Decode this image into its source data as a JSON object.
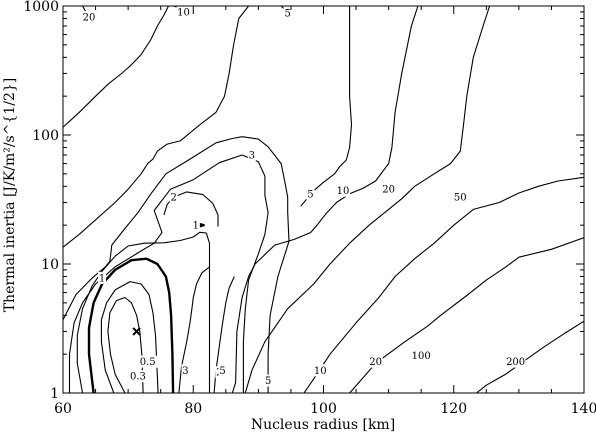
{
  "chart_data": {
    "type": "contour",
    "xlabel": "Nucleus radius [km]",
    "ylabel": "Thermal inertia [J/K/m²/s^{1/2}]",
    "xlim": [
      60,
      140
    ],
    "ylim": [
      1,
      1000
    ],
    "yscale": "log",
    "x_ticks": [
      60,
      80,
      100,
      120,
      140
    ],
    "y_ticks": [
      1,
      10,
      100,
      1000
    ],
    "y_tick_labels": [
      "1",
      "10",
      "100",
      "1000"
    ],
    "grid": false,
    "markers": [
      {
        "symbol": "x",
        "x": 71.3,
        "y": 3.0
      }
    ],
    "contours": [
      {
        "level": 0.3,
        "label": "0.3",
        "line_width": 1,
        "label_at": [
          71.5,
          1.35
        ],
        "points": [
          [
            69.5,
            1
          ],
          [
            68.0,
            1.4
          ],
          [
            67.3,
            2.0
          ],
          [
            66.9,
            3.0
          ],
          [
            67.2,
            4.2
          ],
          [
            68.2,
            5.2
          ],
          [
            69.5,
            5.5
          ],
          [
            70.5,
            5.0
          ],
          [
            71.3,
            4.0
          ],
          [
            71.8,
            3.0
          ],
          [
            72.1,
            2.0
          ],
          [
            72.3,
            1
          ]
        ]
      },
      {
        "level": 0.5,
        "label": "0.5",
        "line_width": 1,
        "label_at": [
          73.0,
          1.75
        ],
        "points": [
          [
            67.8,
            1
          ],
          [
            66.5,
            1.5
          ],
          [
            65.9,
            2.5
          ],
          [
            65.9,
            3.7
          ],
          [
            66.7,
            5.0
          ],
          [
            68.0,
            6.3
          ],
          [
            70.3,
            7.3
          ],
          [
            72.0,
            7.0
          ],
          [
            73.2,
            5.8
          ],
          [
            73.8,
            4.2
          ],
          [
            74.2,
            2.8
          ],
          [
            74.6,
            1
          ]
        ]
      },
      {
        "level": 1,
        "label": "1",
        "line_width": 2,
        "label_at": [
          66.0,
          7.8
        ],
        "points": [
          [
            64.7,
            1
          ],
          [
            64.0,
            2.0
          ],
          [
            64.0,
            3.2
          ],
          [
            64.7,
            5.0
          ],
          [
            66.0,
            7.0
          ],
          [
            68.0,
            9.0
          ],
          [
            70.5,
            10.7
          ],
          [
            72.8,
            11.0
          ],
          [
            74.5,
            10.0
          ],
          [
            75.8,
            8.0
          ],
          [
            76.3,
            6.0
          ],
          [
            76.6,
            4.0
          ],
          [
            76.8,
            2.0
          ],
          [
            76.9,
            1
          ]
        ]
      },
      {
        "level": 1,
        "label": "1",
        "line_width": 2,
        "label_at": [
          80.4,
          20
        ],
        "points": [
          [
            80.0,
            20
          ],
          [
            80.8,
            20.5
          ],
          [
            81.6,
            20
          ],
          [
            80.8,
            19.5
          ],
          [
            80.0,
            20
          ]
        ]
      },
      {
        "level": 2,
        "label": "2",
        "line_width": 1,
        "label_at": [
          84.0,
          1.45
        ],
        "points": [
          [
            63.0,
            1
          ],
          [
            62.2,
            1.7
          ],
          [
            62.2,
            2.8
          ],
          [
            63.0,
            4.5
          ],
          [
            64.5,
            6.8
          ],
          [
            66.0,
            8.8
          ],
          [
            68.0,
            11.5
          ],
          [
            70.0,
            13.8
          ],
          [
            72.5,
            14.5
          ],
          [
            75.5,
            14.6
          ],
          [
            78.0,
            15.2
          ],
          [
            80.0,
            16.2
          ],
          [
            81.0,
            17.6
          ],
          [
            82.0,
            17.4
          ],
          [
            82.5,
            14.5
          ],
          [
            82.5,
            10.0
          ],
          [
            82.5,
            5.0
          ],
          [
            82.5,
            2.5
          ],
          [
            82.5,
            1
          ]
        ]
      },
      {
        "level": 2,
        "label": "2",
        "line_width": 1,
        "label_at": [
          77.0,
          33
        ],
        "points": [
          [
            75.5,
            24
          ],
          [
            76.0,
            29
          ],
          [
            77.0,
            33
          ],
          [
            79.0,
            36.2
          ],
          [
            81.5,
            34.5
          ],
          [
            83.0,
            29.5
          ],
          [
            83.8,
            24.0
          ],
          [
            83.8,
            19.5
          ]
        ]
      },
      {
        "level": 3,
        "label": "3",
        "line_width": 1,
        "label_at": [
          89.0,
          70
        ],
        "points": [
          [
            61.0,
            1
          ],
          [
            61.0,
            2.0
          ],
          [
            61.7,
            3.5
          ],
          [
            63.0,
            5.0
          ],
          [
            65.0,
            7.0
          ],
          [
            68.0,
            9.5
          ],
          [
            71.5,
            12.2
          ],
          [
            74.0,
            14.5
          ],
          [
            75.2,
            17.5
          ],
          [
            74.0,
            26.0
          ],
          [
            76.5,
            38
          ],
          [
            80.0,
            45.0
          ],
          [
            84.0,
            61.0
          ],
          [
            87.5,
            70.0
          ],
          [
            90.0,
            62.0
          ],
          [
            91.0,
            48.0
          ],
          [
            91.0,
            34.0
          ],
          [
            91.5,
            25.0
          ],
          [
            91.0,
            17.0
          ],
          [
            90.0,
            12.0
          ],
          [
            88.5,
            7.5
          ],
          [
            88.0,
            4.5
          ],
          [
            87.7,
            2.5
          ],
          [
            87.7,
            1
          ]
        ]
      },
      {
        "level": 5,
        "label": "5",
        "line_width": 1,
        "label_at": [
          91.5,
          1.25
        ],
        "points": [
          [
            60.0,
            3.7
          ],
          [
            62.0,
            5.8
          ],
          [
            64.5,
            7.8
          ],
          [
            66.5,
            9.5
          ],
          [
            67.2,
            10.5
          ],
          [
            67.5,
            14.0
          ],
          [
            69.0,
            17.5
          ],
          [
            71.5,
            25.0
          ],
          [
            73.5,
            35.0
          ],
          [
            75.8,
            50.0
          ],
          [
            79.5,
            65.0
          ],
          [
            83.5,
            87.0
          ],
          [
            86.0,
            94.0
          ],
          [
            87.5,
            97.0
          ],
          [
            90.0,
            93.0
          ],
          [
            91.5,
            81.0
          ],
          [
            93.5,
            60.0
          ],
          [
            94.0,
            45.0
          ],
          [
            94.5,
            33.0
          ],
          [
            94.5,
            25.0
          ],
          [
            94.7,
            15.0
          ],
          [
            93.0,
            8.0
          ],
          [
            91.8,
            4.0
          ],
          [
            91.5,
            2.0
          ],
          [
            91.5,
            1
          ]
        ]
      },
      {
        "level": 5,
        "label": "5",
        "line_width": 1,
        "label_at": [
          98.0,
          35
        ],
        "points": [
          [
            96.5,
            28.0
          ],
          [
            98.5,
            37.0
          ],
          [
            100.0,
            43.0
          ],
          [
            101.7,
            50.0
          ],
          [
            102.5,
            57.0
          ],
          [
            103.5,
            64.0
          ],
          [
            104.0,
            80.0
          ],
          [
            104.3,
            120.0
          ],
          [
            104.0,
            200.0
          ],
          [
            104.0,
            400.0
          ],
          [
            104.0,
            1000
          ]
        ]
      },
      {
        "level": 10,
        "label": "10",
        "line_width": 1,
        "label_at": [
          99.5,
          1.5
        ],
        "points": [
          [
            60.0,
            13.5
          ],
          [
            62.5,
            17.0
          ],
          [
            65.0,
            22.0
          ],
          [
            68.0,
            30.0
          ],
          [
            70.0,
            38.0
          ],
          [
            72.0,
            50.0
          ],
          [
            73.0,
            60.0
          ],
          [
            73.8,
            65.0
          ],
          [
            74.5,
            75.0
          ],
          [
            76.0,
            85.0
          ],
          [
            78.0,
            90.0
          ],
          [
            81.0,
            120.0
          ],
          [
            83.5,
            150.0
          ],
          [
            84.8,
            200.0
          ],
          [
            85.5,
            300.0
          ],
          [
            86.2,
            500.0
          ],
          [
            87.0,
            800.0
          ],
          [
            88.5,
            1000
          ]
        ]
      },
      {
        "level": 10,
        "label": "10",
        "line_width": 1,
        "label_at": [
          103.0,
          37
        ],
        "points": [
          [
            86.0,
            1
          ],
          [
            86.5,
            1.2
          ],
          [
            86.6,
            1.8
          ],
          [
            86.7,
            3.0
          ],
          [
            87.5,
            5.5
          ],
          [
            88.5,
            8.0
          ],
          [
            89.5,
            10.0
          ],
          [
            92.5,
            14.0
          ],
          [
            95.5,
            15.5
          ],
          [
            98.0,
            17.5
          ],
          [
            99.0,
            20.0
          ],
          [
            100.5,
            25.0
          ],
          [
            102.0,
            30.0
          ],
          [
            104.0,
            35.0
          ],
          [
            106.0,
            38.5
          ],
          [
            108.0,
            44.0
          ],
          [
            110.0,
            60.0
          ],
          [
            110.5,
            80.0
          ],
          [
            111.0,
            150.0
          ],
          [
            112.0,
            300.0
          ],
          [
            113.5,
            700.0
          ],
          [
            114.5,
            1000
          ]
        ]
      },
      {
        "level": 20,
        "label": "20",
        "line_width": 1,
        "label_at": [
          108.0,
          1.75
        ],
        "points": [
          [
            60.0,
            115.0
          ],
          [
            62.5,
            150.0
          ],
          [
            65.0,
            200.0
          ],
          [
            67.0,
            250.0
          ],
          [
            69.0,
            300.0
          ],
          [
            70.5,
            350.0
          ],
          [
            72.0,
            420.0
          ],
          [
            73.5,
            550.0
          ],
          [
            74.5,
            700.0
          ],
          [
            75.5,
            850.0
          ],
          [
            76.2,
            1000
          ]
        ]
      },
      {
        "level": 20,
        "label": "20",
        "line_width": 1,
        "label_at": [
          110.0,
          38
        ],
        "points": [
          [
            88.0,
            1
          ],
          [
            89.0,
            1.5
          ],
          [
            91.0,
            2.5
          ],
          [
            94.5,
            4.5
          ],
          [
            98.5,
            7.0
          ],
          [
            101.0,
            10.0
          ],
          [
            104.0,
            14.5
          ],
          [
            107.0,
            20.0
          ],
          [
            110.0,
            26.5
          ],
          [
            112.0,
            32.0
          ],
          [
            114.0,
            40.0
          ],
          [
            117.0,
            50.0
          ],
          [
            119.5,
            60.0
          ],
          [
            121.0,
            75.0
          ],
          [
            121.5,
            120.0
          ],
          [
            122.0,
            200.0
          ],
          [
            123.0,
            400.0
          ],
          [
            124.5,
            700.0
          ],
          [
            125.5,
            1000
          ]
        ]
      },
      {
        "level": 50,
        "label": "50",
        "line_width": 1,
        "label_at": [
          121.0,
          33
        ],
        "points": [
          [
            97.0,
            1
          ],
          [
            99.0,
            1.4
          ],
          [
            101.0,
            2.0
          ],
          [
            105.0,
            3.5
          ],
          [
            108.5,
            5.5
          ],
          [
            111.0,
            8.0
          ],
          [
            114.0,
            11.0
          ],
          [
            117.0,
            14.5
          ],
          [
            120.0,
            20.0
          ],
          [
            123.0,
            26.5
          ],
          [
            127.0,
            30.0
          ],
          [
            130.0,
            35.5
          ],
          [
            133.0,
            40.0
          ],
          [
            136.0,
            44.0
          ],
          [
            140.0,
            47.0
          ]
        ]
      },
      {
        "level": 100,
        "label": "100",
        "line_width": 1,
        "label_at": [
          115.0,
          1.95
        ],
        "points": [
          [
            104.0,
            1
          ],
          [
            106.0,
            1.3
          ],
          [
            108.0,
            1.7
          ],
          [
            112.5,
            2.5
          ],
          [
            116.0,
            3.3
          ],
          [
            118.0,
            4.0
          ],
          [
            122.0,
            5.7
          ],
          [
            125.0,
            7.5
          ],
          [
            128.0,
            9.5
          ],
          [
            130.0,
            11.3
          ],
          [
            135.0,
            13.0
          ],
          [
            140.0,
            16.0
          ]
        ]
      },
      {
        "level": 200,
        "label": "200",
        "line_width": 1,
        "label_at": [
          129.5,
          1.75
        ],
        "points": [
          [
            123.5,
            1
          ],
          [
            125.0,
            1.15
          ],
          [
            128.0,
            1.4
          ],
          [
            131.0,
            1.8
          ],
          [
            134.0,
            2.3
          ],
          [
            137.0,
            2.9
          ],
          [
            140.0,
            3.6
          ]
        ]
      },
      {
        "level": 3,
        "label": "3",
        "line_width": 1,
        "label_at": [
          78.8,
          1.5
        ],
        "points": [
          [
            77.8,
            1
          ],
          [
            78.2,
            1.6
          ],
          [
            79.0,
            2.5
          ],
          [
            79.5,
            3.5
          ],
          [
            79.8,
            4.5
          ],
          [
            80.0,
            5.5
          ],
          [
            80.5,
            7.0
          ],
          [
            81.3,
            8.5
          ],
          [
            82.5,
            9.5
          ]
        ]
      },
      {
        "level": 5,
        "label": "5",
        "line_width": 1,
        "label_at": [
          84.5,
          1.5
        ],
        "points": [
          [
            83.2,
            1
          ],
          [
            83.5,
            1.5
          ],
          [
            84.0,
            2.3
          ],
          [
            84.5,
            3.5
          ],
          [
            85.0,
            5.0
          ],
          [
            85.5,
            6.5
          ],
          [
            86.3,
            8.0
          ]
        ]
      },
      {
        "level": 20,
        "label": "20",
        "line_width": 1,
        "label_at": [
          64.0,
          820
        ],
        "points": [
          [
            63.0,
            1000
          ],
          [
            63.5,
            900
          ],
          [
            64.0,
            820
          ],
          [
            64.7,
            740
          ]
        ]
      },
      {
        "level": 10,
        "label": "10",
        "line_width": 1,
        "label_at": [
          78.5,
          900
        ],
        "points": [
          [
            77.0,
            1000
          ],
          [
            78.0,
            960
          ],
          [
            78.5,
            900
          ],
          [
            79.0,
            850
          ]
        ]
      },
      {
        "level": 5,
        "label": "5",
        "line_width": 1,
        "label_at": [
          94.5,
          880
        ],
        "points": [
          [
            93.5,
            1000
          ],
          [
            94.0,
            950
          ],
          [
            94.5,
            880
          ],
          [
            95.0,
            830
          ]
        ]
      }
    ]
  }
}
